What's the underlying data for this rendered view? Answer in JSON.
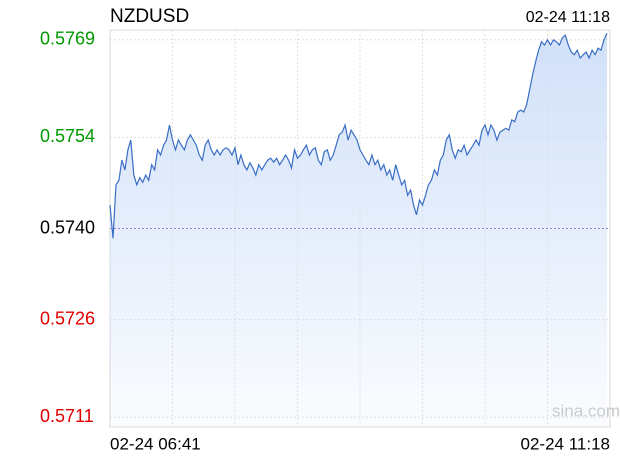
{
  "chart_data": {
    "type": "line",
    "title": "NZDUSD",
    "timestamp": "02-24 11:18",
    "watermark": "sina.com",
    "x_labels": [
      "02-24 06:41",
      "02-24 11:18"
    ],
    "x_grid_divisions": 8,
    "ylim": [
      0.57095,
      0.57705
    ],
    "yticks": [
      {
        "value": 0.5769,
        "label": "0.5769"
      },
      {
        "value": 0.5754,
        "label": "0.5754"
      },
      {
        "value": 0.574,
        "label": "0.5740"
      },
      {
        "value": 0.5726,
        "label": "0.5726"
      },
      {
        "value": 0.5711,
        "label": "0.5711"
      }
    ],
    "ytick_colors": [
      "#009900",
      "#009900",
      "#000000",
      "#e00000",
      "#e00000"
    ],
    "baseline": 0.574,
    "grid": true,
    "color": "#3a6ec5",
    "fill_color": "#cfdff8",
    "values": [
      0.57436,
      0.57385,
      0.57467,
      0.57474,
      0.57505,
      0.5749,
      0.57521,
      0.57536,
      0.57482,
      0.57467,
      0.57478,
      0.57471,
      0.57482,
      0.57474,
      0.57498,
      0.5749,
      0.57521,
      0.57513,
      0.57528,
      0.57536,
      0.57559,
      0.57536,
      0.57521,
      0.57536,
      0.57528,
      0.57521,
      0.57536,
      0.57544,
      0.57536,
      0.57528,
      0.57513,
      0.57505,
      0.57528,
      0.57536,
      0.57521,
      0.57513,
      0.57521,
      0.57513,
      0.57521,
      0.57524,
      0.57521,
      0.57513,
      0.57524,
      0.57498,
      0.57513,
      0.57498,
      0.5749,
      0.57501,
      0.57493,
      0.57482,
      0.57498,
      0.5749,
      0.57498,
      0.57505,
      0.57508,
      0.57502,
      0.57508,
      0.57498,
      0.57505,
      0.57513,
      0.57505,
      0.57493,
      0.57521,
      0.57508,
      0.57513,
      0.57521,
      0.57528,
      0.57513,
      0.57521,
      0.57524,
      0.57505,
      0.57498,
      0.57518,
      0.57521,
      0.57505,
      0.57513,
      0.57528,
      0.57544,
      0.57548,
      0.57559,
      0.57536,
      0.57551,
      0.57544,
      0.57536,
      0.57521,
      0.57513,
      0.57505,
      0.57498,
      0.57513,
      0.57498,
      0.57505,
      0.5749,
      0.57498,
      0.57482,
      0.5749,
      0.57474,
      0.57498,
      0.57482,
      0.57467,
      0.57474,
      0.57451,
      0.57459,
      0.57436,
      0.57421,
      0.57444,
      0.57436,
      0.57451,
      0.57467,
      0.57474,
      0.5749,
      0.57482,
      0.57505,
      0.57513,
      0.57536,
      0.57544,
      0.57521,
      0.57508,
      0.57521,
      0.57518,
      0.57528,
      0.57513,
      0.57521,
      0.57528,
      0.57536,
      0.57528,
      0.57551,
      0.57559,
      0.57544,
      0.57559,
      0.57551,
      0.57536,
      0.57548,
      0.57551,
      0.57554,
      0.57551,
      0.57567,
      0.57564,
      0.57579,
      0.57582,
      0.57579,
      0.5759,
      0.57613,
      0.57636,
      0.57656,
      0.57674,
      0.57687,
      0.57682,
      0.5769,
      0.57682,
      0.5769,
      0.57687,
      0.57682,
      0.57693,
      0.57697,
      0.57682,
      0.57671,
      0.57667,
      0.57674,
      0.57662,
      0.57667,
      0.57671,
      0.57662,
      0.57674,
      0.57667,
      0.57677,
      0.57674,
      0.5769,
      0.577
    ]
  }
}
